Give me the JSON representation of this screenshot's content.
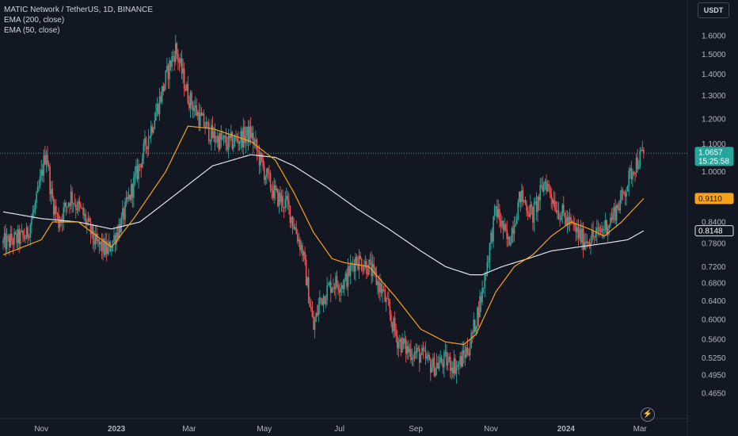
{
  "legend": {
    "symbol": "MATIC Network / TetherUS, 1D, BINANCE",
    "ema200": "EMA (200, close)",
    "ema50": "EMA (50, close)"
  },
  "currency_button": "USDT",
  "bolt_icon": "lightning-icon",
  "colors": {
    "background": "#131722",
    "up": "#26a69a",
    "down": "#ef5350",
    "ema200": "#e0e3eb",
    "ema50": "#f7a21b",
    "last_price": "#26a69a"
  },
  "price_badges": {
    "last_price": "1.0657",
    "countdown": "15:25:58",
    "ema50": "0.9110",
    "ema200": "0.8148"
  },
  "chart_data": {
    "type": "candlestick",
    "title": "MATIC Network / TetherUS, 1D, BINANCE",
    "y_scale": "log",
    "ylim": [
      0.44,
      1.78
    ],
    "y_ticks": [
      "1.6000",
      "1.5000",
      "1.4000",
      "1.3000",
      "1.2000",
      "1.1000",
      "1.0000",
      "0.8400",
      "0.7800",
      "0.7200",
      "0.6800",
      "0.6400",
      "0.6000",
      "0.5600",
      "0.5250",
      "0.4950",
      "0.4650"
    ],
    "x_ticks": [
      "Nov",
      "2023",
      "Mar",
      "May",
      "Jul",
      "Sep",
      "Nov",
      "2024",
      "Mar"
    ],
    "x_tick_dates": [
      "2022-11-01",
      "2023-01-01",
      "2023-03-01",
      "2023-05-01",
      "2023-07-01",
      "2023-09-01",
      "2023-11-01",
      "2024-01-01",
      "2024-03-01"
    ],
    "xlim": [
      "2022-10-01",
      "2024-03-06"
    ],
    "close_path": {
      "dates": [
        "2022-10-01",
        "2022-10-20",
        "2022-10-28",
        "2022-11-05",
        "2022-11-09",
        "2022-11-15",
        "2022-11-25",
        "2022-12-05",
        "2022-12-15",
        "2022-12-25",
        "2023-01-05",
        "2023-01-15",
        "2023-01-25",
        "2023-02-05",
        "2023-02-12",
        "2023-02-18",
        "2023-02-28",
        "2023-03-10",
        "2023-03-20",
        "2023-04-01",
        "2023-04-10",
        "2023-04-20",
        "2023-05-01",
        "2023-05-10",
        "2023-05-20",
        "2023-06-01",
        "2023-06-10",
        "2023-06-15",
        "2023-06-25",
        "2023-07-05",
        "2023-07-14",
        "2023-07-25",
        "2023-08-05",
        "2023-08-17",
        "2023-08-25",
        "2023-09-05",
        "2023-09-15",
        "2023-09-25",
        "2023-10-05",
        "2023-10-15",
        "2023-10-25",
        "2023-11-05",
        "2023-11-15",
        "2023-11-25",
        "2023-12-05",
        "2023-12-15",
        "2023-12-25",
        "2024-01-05",
        "2024-01-15",
        "2024-01-25",
        "2024-02-05",
        "2024-02-15",
        "2024-02-25",
        "2024-03-04"
      ],
      "closes": [
        0.78,
        0.8,
        0.9,
        1.08,
        0.92,
        0.84,
        0.92,
        0.86,
        0.78,
        0.76,
        0.84,
        0.96,
        1.1,
        1.28,
        1.42,
        1.53,
        1.3,
        1.2,
        1.13,
        1.1,
        1.12,
        1.14,
        1.0,
        0.92,
        0.89,
        0.76,
        0.58,
        0.64,
        0.68,
        0.68,
        0.74,
        0.72,
        0.66,
        0.56,
        0.54,
        0.53,
        0.51,
        0.52,
        0.51,
        0.55,
        0.66,
        0.88,
        0.78,
        0.92,
        0.86,
        0.97,
        0.88,
        0.83,
        0.79,
        0.8,
        0.84,
        0.91,
        1.02,
        1.0657
      ]
    },
    "ema50_path": {
      "dates": [
        "2022-10-01",
        "2022-11-01",
        "2022-11-10",
        "2022-12-01",
        "2022-12-28",
        "2023-01-15",
        "2023-02-10",
        "2023-02-28",
        "2023-03-20",
        "2023-04-20",
        "2023-05-10",
        "2023-05-25",
        "2023-06-10",
        "2023-06-25",
        "2023-07-05",
        "2023-07-25",
        "2023-08-15",
        "2023-09-05",
        "2023-09-25",
        "2023-10-10",
        "2023-10-20",
        "2023-11-05",
        "2023-11-20",
        "2023-12-05",
        "2023-12-20",
        "2024-01-05",
        "2024-01-20",
        "2024-02-01",
        "2024-02-15",
        "2024-03-04"
      ],
      "values": [
        0.75,
        0.79,
        0.84,
        0.84,
        0.77,
        0.85,
        1.0,
        1.17,
        1.16,
        1.11,
        1.04,
        0.93,
        0.81,
        0.74,
        0.73,
        0.72,
        0.65,
        0.58,
        0.555,
        0.55,
        0.57,
        0.66,
        0.72,
        0.75,
        0.8,
        0.84,
        0.82,
        0.8,
        0.84,
        0.911
      ]
    },
    "ema200_path": {
      "dates": [
        "2022-10-01",
        "2022-11-01",
        "2022-12-01",
        "2022-12-28",
        "2023-01-20",
        "2023-02-20",
        "2023-03-20",
        "2023-04-20",
        "2023-05-10",
        "2023-05-25",
        "2023-06-20",
        "2023-07-15",
        "2023-08-10",
        "2023-09-05",
        "2023-09-25",
        "2023-10-15",
        "2023-10-25",
        "2023-11-10",
        "2023-12-01",
        "2023-12-20",
        "2024-01-10",
        "2024-02-01",
        "2024-02-20",
        "2024-03-04"
      ],
      "values": [
        0.87,
        0.85,
        0.84,
        0.82,
        0.84,
        0.93,
        1.02,
        1.06,
        1.05,
        1.02,
        0.95,
        0.88,
        0.82,
        0.76,
        0.72,
        0.7,
        0.7,
        0.72,
        0.74,
        0.76,
        0.77,
        0.78,
        0.79,
        0.8148
      ]
    },
    "last_price": 1.0657,
    "ema50_last": 0.911,
    "ema200_last": 0.8148
  }
}
